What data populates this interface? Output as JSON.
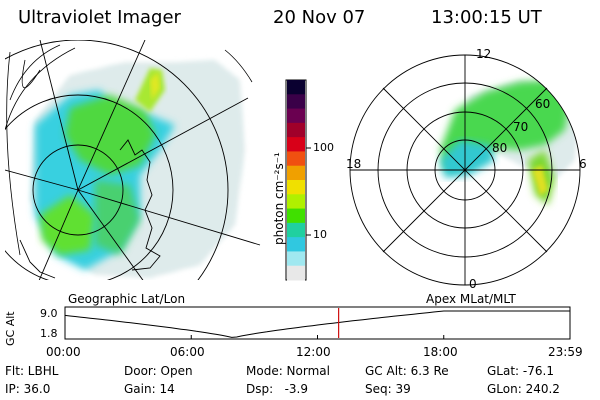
{
  "header": {
    "instrument": "Ultraviolet Imager",
    "date": "20 Nov 07",
    "time": "13:00:15 UT"
  },
  "geo_panel": {
    "label": "Geographic Lat/Lon"
  },
  "polar_panel": {
    "label": "Apex MLat/MLT",
    "mlt_labels": {
      "top": "12",
      "bottom": "0",
      "left": "18",
      "right": "6"
    },
    "lat_labels": [
      "60",
      "70",
      "80"
    ]
  },
  "colorbar": {
    "unit_label": "photon cm⁻²s⁻¹",
    "ticks": [
      "100",
      "10"
    ],
    "colors": [
      "#0a0030",
      "#3a0048",
      "#6a0050",
      "#a0002a",
      "#d80018",
      "#f05010",
      "#f0a000",
      "#f0e000",
      "#b0f000",
      "#40e000",
      "#20d0a0",
      "#30c8e0",
      "#a0e8f0",
      "#e8e8e8"
    ]
  },
  "altitude_plot": {
    "ylabel": "GC Alt",
    "ymax": "9.0",
    "ymin": "1.8",
    "xticks": [
      "00:00",
      "06:00",
      "12:00",
      "18:00",
      "23:59"
    ],
    "marker_hour": 13.004,
    "curve_color": "#000000",
    "marker_color": "#d01010"
  },
  "status": {
    "filter": "Flt: LBHL",
    "ip": "IP: 36.0",
    "door": "Door: Open",
    "gain": "Gain: 14",
    "mode": "Mode: Normal",
    "dsp": "Dsp:   -3.9",
    "gc_alt": "GC Alt: 6.3 Re",
    "seq": "Seq: 39",
    "glat": "GLat: -76.1",
    "glon": "GLon: 240.2"
  }
}
